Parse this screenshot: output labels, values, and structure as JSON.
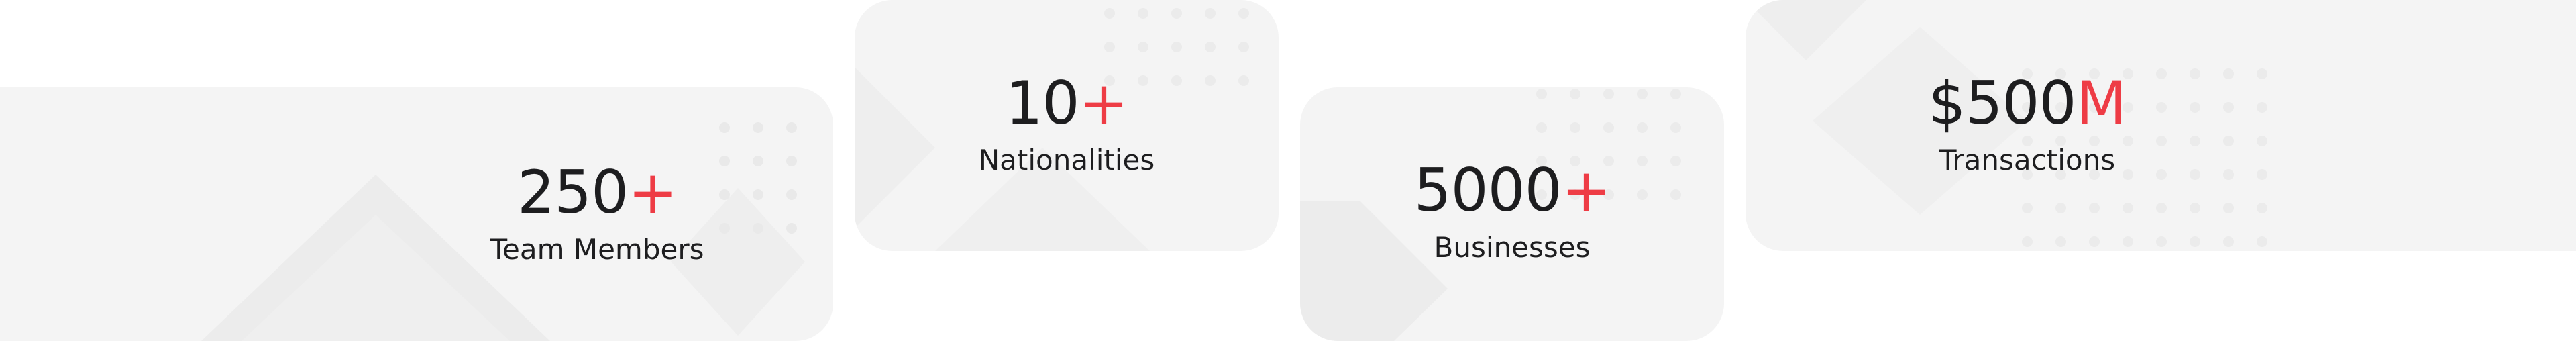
{
  "stats": [
    {
      "value": "250",
      "suffix": "+",
      "label": "Team Members"
    },
    {
      "value": "10",
      "suffix": "+",
      "label": "Nationalities"
    },
    {
      "value": "5000",
      "suffix": "+",
      "label": "Businesses"
    },
    {
      "value": "$500",
      "suffix": "M",
      "label": "Transactions"
    }
  ],
  "colors": {
    "accent": "#ee3c45",
    "text": "#1d1d1f",
    "card_background": "#f4f4f4",
    "page_background": "#ffffff"
  }
}
